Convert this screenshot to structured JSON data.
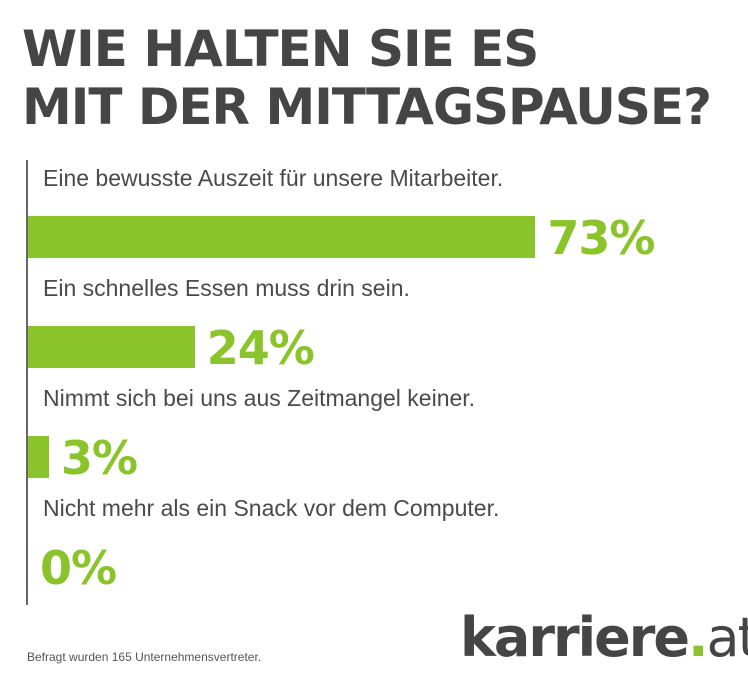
{
  "chart_data": {
    "type": "bar",
    "orientation": "horizontal",
    "title": "WIE HALTEN SIE ES MIT DER MITTAGSPAUSE?",
    "title_lines": [
      "WIE HALTEN SIE ES",
      "MIT DER MITTAGSPAUSE?"
    ],
    "categories": [
      "Eine bewusste Auszeit für unsere Mitarbeiter.",
      "Ein schnelles Essen muss drin sein.",
      "Nimmt sich bei uns aus Zeitmangel keiner.",
      "Nicht mehr als ein Snack vor dem Computer."
    ],
    "values": [
      73,
      24,
      3,
      0
    ],
    "value_labels": [
      "73%",
      "24%",
      "3%",
      "0%"
    ],
    "unit": "%",
    "xlim": [
      0,
      100
    ],
    "bar_color": "#8ac42a"
  },
  "footnote": "Befragt wurden 165 Unternehmensvertreter.",
  "logo": {
    "main": "karriere",
    "dot": ".",
    "suffix": "at"
  }
}
